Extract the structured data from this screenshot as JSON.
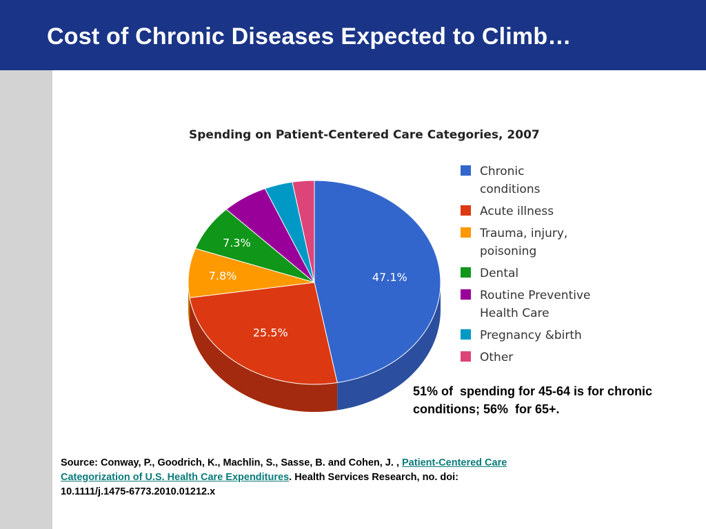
{
  "slide": {
    "title": "Cost of Chronic Diseases Expected to Climb…"
  },
  "note": {
    "text": "51% of  spending for 45-64 is for chronic conditions; 56%  for 65+."
  },
  "source": {
    "prefix": "Source:  Conway, P., Goodrich, K., Machlin, S., Sasse, B. and Cohen, J. , ",
    "link_text": "Patient-Centered Care Categorization of U.S. Health Care Expenditures",
    "suffix": ". Health Services Research, no. doi: 10.1111/j.1475-6773.2010.01212.x"
  },
  "chart_data": {
    "type": "pie",
    "title": "Spending on Patient-Centered Care Categories, 2007",
    "slices": [
      {
        "name": "Chronic\nconditions",
        "value": 47.1,
        "label": "47.1%",
        "color": "#3366cc",
        "side": "#2b4f9e"
      },
      {
        "name": "Acute illness",
        "value": 25.5,
        "label": "25.5%",
        "color": "#dc3912",
        "side": "#a32a0e"
      },
      {
        "name": "Trauma, injury,\npoisoning",
        "value": 7.8,
        "label": "7.8%",
        "color": "#ff9900",
        "side": "#c77700"
      },
      {
        "name": "Dental",
        "value": 7.3,
        "label": "7.3%",
        "color": "#109618",
        "side": "#0b6d11"
      },
      {
        "name": "Routine Preventive\nHealth Care",
        "value": 5.9,
        "label": "",
        "color": "#990099",
        "side": "#6e006e"
      },
      {
        "name": "Pregnancy &birth",
        "value": 3.6,
        "label": "",
        "color": "#0099c6",
        "side": "#00708f"
      },
      {
        "name": "Other",
        "value": 2.8,
        "label": "",
        "color": "#dd4477",
        "side": "#a83358"
      }
    ],
    "legend_position": "right"
  }
}
